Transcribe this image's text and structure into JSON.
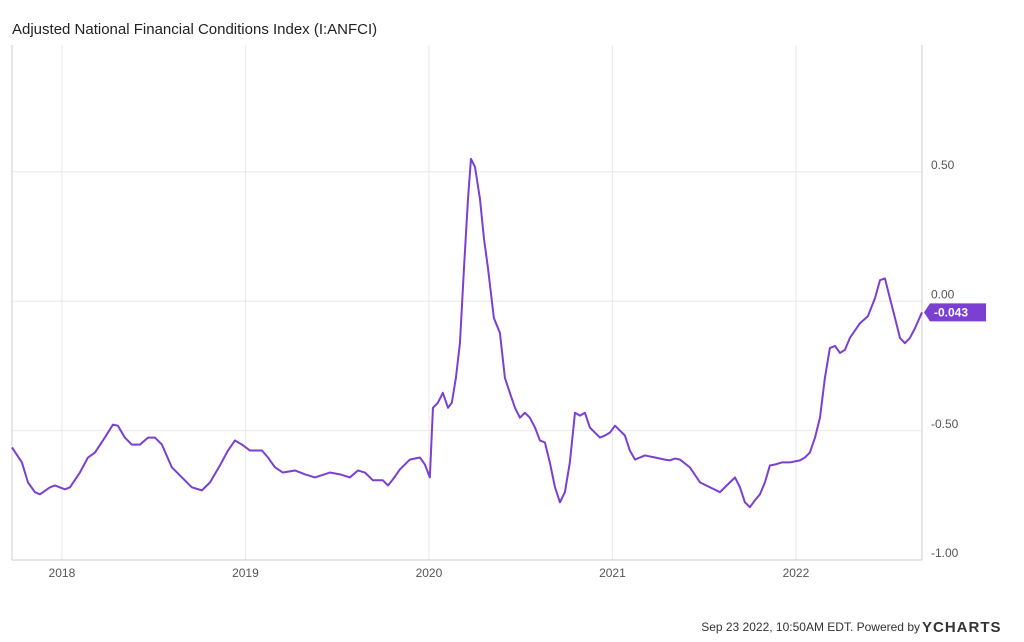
{
  "chart_data": {
    "type": "line",
    "title": "Adjusted National Financial Conditions Index (I:ANFCI)",
    "footer": "Sep 23 2022, 10:50AM EDT. Powered by",
    "brand": "YCHARTS",
    "xlim": [
      2017.728,
      2022.687
    ],
    "xticks": [
      2018,
      2019,
      2020,
      2021,
      2022
    ],
    "ylim": [
      -1.0,
      0.99
    ],
    "yticks": [
      {
        "value": 0.5,
        "label": "0.50"
      },
      {
        "value": 0,
        "label": "0.00"
      },
      {
        "value": -0.5,
        "label": "-0.50"
      },
      {
        "value": -1,
        "label": "-1.00"
      }
    ],
    "grid": true,
    "x": [
      2017.728,
      2017.782,
      2017.815,
      2017.853,
      2017.88,
      2017.935,
      2017.962,
      2018.016,
      2018.044,
      2018.098,
      2018.142,
      2018.18,
      2018.234,
      2018.278,
      2018.305,
      2018.343,
      2018.381,
      2018.425,
      2018.469,
      2018.507,
      2018.545,
      2018.599,
      2018.654,
      2018.708,
      2018.763,
      2018.807,
      2018.861,
      2018.905,
      2018.943,
      2018.981,
      2019.025,
      2019.09,
      2019.123,
      2019.161,
      2019.204,
      2019.27,
      2019.324,
      2019.379,
      2019.46,
      2019.515,
      2019.569,
      2019.613,
      2019.651,
      2019.695,
      2019.749,
      2019.777,
      2019.804,
      2019.842,
      2019.896,
      2019.951,
      2019.978,
      2020.005,
      2020.022,
      2020.049,
      2020.076,
      2020.104,
      2020.125,
      2020.147,
      2020.169,
      2020.191,
      2020.213,
      2020.229,
      2020.251,
      2020.278,
      2020.3,
      2020.322,
      2020.354,
      2020.387,
      2020.414,
      2020.441,
      2020.469,
      2020.496,
      2020.523,
      2020.55,
      2020.578,
      2020.605,
      2020.632,
      2020.659,
      2020.687,
      2020.714,
      2020.741,
      2020.768,
      2020.796,
      2020.823,
      2020.85,
      2020.877,
      2020.905,
      2020.932,
      2020.959,
      2020.986,
      2021.014,
      2021.041,
      2021.068,
      2021.095,
      2021.123,
      2021.177,
      2021.232,
      2021.286,
      2021.313,
      2021.341,
      2021.368,
      2021.422,
      2021.477,
      2021.531,
      2021.586,
      2021.64,
      2021.668,
      2021.695,
      2021.722,
      2021.749,
      2021.777,
      2021.804,
      2021.831,
      2021.858,
      2021.886,
      2021.924,
      2021.967,
      2022.022,
      2022.049,
      2022.076,
      2022.104,
      2022.131,
      2022.158,
      2022.185,
      2022.213,
      2022.24,
      2022.267,
      2022.294,
      2022.349,
      2022.392,
      2022.431,
      2022.458,
      2022.485,
      2022.512,
      2022.54,
      2022.567,
      2022.594,
      2022.621,
      2022.649,
      2022.687
    ],
    "series": [
      {
        "name": "I:ANFCI",
        "color": "#7b3fd1",
        "values": [
          -0.565,
          -0.623,
          -0.7,
          -0.738,
          -0.746,
          -0.719,
          -0.712,
          -0.727,
          -0.719,
          -0.662,
          -0.604,
          -0.585,
          -0.527,
          -0.477,
          -0.481,
          -0.527,
          -0.554,
          -0.554,
          -0.527,
          -0.527,
          -0.554,
          -0.642,
          -0.681,
          -0.719,
          -0.731,
          -0.7,
          -0.635,
          -0.577,
          -0.538,
          -0.554,
          -0.577,
          -0.577,
          -0.604,
          -0.642,
          -0.662,
          -0.654,
          -0.669,
          -0.681,
          -0.662,
          -0.669,
          -0.681,
          -0.654,
          -0.662,
          -0.692,
          -0.692,
          -0.712,
          -0.688,
          -0.65,
          -0.612,
          -0.604,
          -0.631,
          -0.681,
          -0.412,
          -0.392,
          -0.354,
          -0.412,
          -0.392,
          -0.296,
          -0.162,
          0.127,
          0.396,
          0.55,
          0.519,
          0.396,
          0.242,
          0.127,
          -0.065,
          -0.123,
          -0.296,
          -0.354,
          -0.412,
          -0.45,
          -0.431,
          -0.45,
          -0.488,
          -0.538,
          -0.546,
          -0.623,
          -0.719,
          -0.777,
          -0.738,
          -0.623,
          -0.431,
          -0.442,
          -0.431,
          -0.488,
          -0.508,
          -0.527,
          -0.519,
          -0.508,
          -0.481,
          -0.5,
          -0.519,
          -0.577,
          -0.612,
          -0.596,
          -0.604,
          -0.612,
          -0.615,
          -0.608,
          -0.612,
          -0.642,
          -0.7,
          -0.719,
          -0.738,
          -0.7,
          -0.681,
          -0.719,
          -0.777,
          -0.796,
          -0.769,
          -0.746,
          -0.7,
          -0.635,
          -0.631,
          -0.623,
          -0.623,
          -0.615,
          -0.604,
          -0.585,
          -0.527,
          -0.45,
          -0.296,
          -0.181,
          -0.173,
          -0.2,
          -0.188,
          -0.142,
          -0.085,
          -0.058,
          0.012,
          0.081,
          0.088,
          0.012,
          -0.065,
          -0.142,
          -0.162,
          -0.142,
          -0.104,
          -0.043
        ]
      }
    ]
  }
}
